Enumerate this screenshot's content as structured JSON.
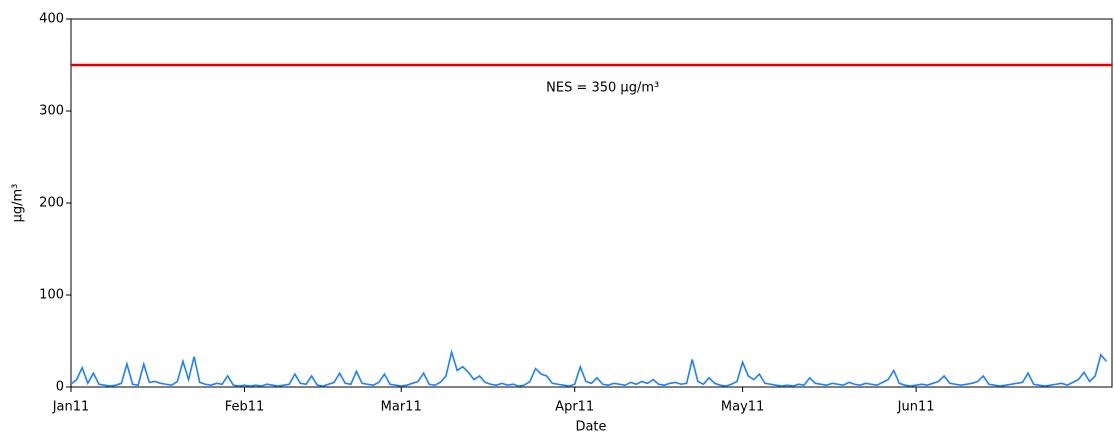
{
  "chart_data": {
    "type": "line",
    "xlabel": "Date",
    "ylabel": "µg/m³",
    "xlim": [
      0,
      186
    ],
    "xticks": [
      {
        "value": 0,
        "label": "Jan11"
      },
      {
        "value": 31,
        "label": "Feb11"
      },
      {
        "value": 59,
        "label": "Mar11"
      },
      {
        "value": 90,
        "label": "Apr11"
      },
      {
        "value": 120,
        "label": "May11"
      },
      {
        "value": 151,
        "label": "Jun11"
      }
    ],
    "ylim": [
      0,
      400
    ],
    "yticks": [
      0,
      100,
      200,
      300,
      400
    ],
    "hlines": [
      {
        "value": 350,
        "color": "#e00000"
      }
    ],
    "annotations": [
      {
        "text": "NES = 350 µg/m³",
        "x": 95,
        "y": 325
      }
    ],
    "x": [
      0,
      1,
      2,
      3,
      4,
      5,
      6,
      7,
      8,
      9,
      10,
      11,
      12,
      13,
      14,
      15,
      16,
      17,
      18,
      19,
      20,
      21,
      22,
      23,
      24,
      25,
      26,
      27,
      28,
      29,
      30,
      31,
      32,
      33,
      34,
      35,
      36,
      37,
      38,
      39,
      40,
      41,
      42,
      43,
      44,
      45,
      46,
      47,
      48,
      49,
      50,
      51,
      52,
      53,
      54,
      55,
      56,
      57,
      58,
      59,
      60,
      61,
      62,
      63,
      64,
      65,
      66,
      67,
      68,
      69,
      70,
      71,
      72,
      73,
      74,
      75,
      76,
      77,
      78,
      79,
      80,
      81,
      82,
      83,
      84,
      85,
      86,
      87,
      88,
      89,
      90,
      91,
      92,
      93,
      94,
      95,
      96,
      97,
      98,
      99,
      100,
      101,
      102,
      103,
      104,
      105,
      106,
      107,
      108,
      109,
      110,
      111,
      112,
      113,
      114,
      115,
      116,
      117,
      118,
      119,
      120,
      121,
      122,
      123,
      124,
      125,
      126,
      127,
      128,
      129,
      130,
      131,
      132,
      133,
      134,
      135,
      136,
      137,
      138,
      139,
      140,
      141,
      142,
      143,
      144,
      145,
      146,
      147,
      148,
      149,
      150,
      151,
      152,
      153,
      154,
      155,
      156,
      157,
      158,
      159,
      160,
      161,
      162,
      163,
      164,
      165,
      166,
      167,
      168,
      169,
      170,
      171,
      172,
      173,
      174,
      175,
      176,
      177,
      178,
      179,
      180,
      181,
      182,
      183,
      184,
      185
    ],
    "series": [
      {
        "color": "#1e7fff",
        "values": [
          3,
          8,
          21,
          4,
          15,
          3,
          2,
          1,
          2,
          4,
          25,
          3,
          2,
          25,
          5,
          6,
          4,
          3,
          2,
          6,
          28,
          8,
          33,
          5,
          3,
          2,
          4,
          3,
          12,
          2,
          1,
          2,
          1,
          2,
          1,
          3,
          2,
          1,
          2,
          3,
          14,
          4,
          3,
          12,
          2,
          1,
          3,
          5,
          15,
          4,
          3,
          17,
          4,
          3,
          2,
          5,
          14,
          3,
          2,
          1,
          2,
          4,
          6,
          15,
          3,
          2,
          5,
          12,
          38,
          18,
          22,
          16,
          8,
          12,
          5,
          3,
          2,
          4,
          2,
          3,
          1,
          2,
          6,
          20,
          14,
          12,
          4,
          3,
          2,
          1,
          3,
          22,
          6,
          4,
          10,
          3,
          2,
          4,
          3,
          2,
          5,
          3,
          6,
          4,
          8,
          3,
          2,
          4,
          5,
          3,
          4,
          30,
          6,
          3,
          10,
          4,
          2,
          1,
          3,
          6,
          27,
          12,
          8,
          14,
          4,
          3,
          2,
          1,
          2,
          1,
          3,
          2,
          10,
          4,
          3,
          2,
          4,
          3,
          2,
          5,
          3,
          2,
          4,
          3,
          2,
          5,
          8,
          18,
          4,
          2,
          1,
          2,
          3,
          2,
          4,
          6,
          12,
          4,
          3,
          2,
          3,
          4,
          6,
          12,
          3,
          2,
          1,
          2,
          3,
          4,
          5,
          15,
          3,
          2,
          1,
          2,
          3,
          4,
          2,
          5,
          8,
          16,
          6,
          12,
          35,
          28
        ]
      }
    ]
  }
}
